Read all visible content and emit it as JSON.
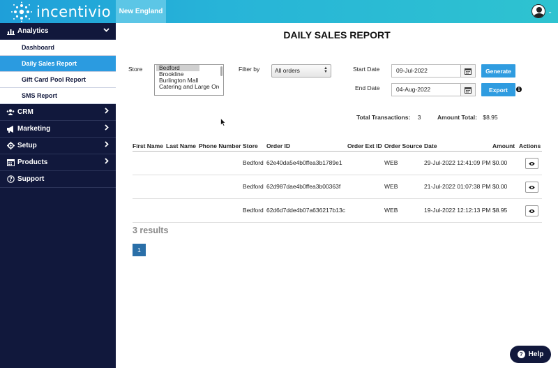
{
  "header": {
    "logo_text": "incentivio",
    "region": "New England"
  },
  "sidebar": {
    "analytics": {
      "label": "Analytics",
      "icon": "bar-chart-icon"
    },
    "sub_items": [
      {
        "label": "Dashboard",
        "active": false
      },
      {
        "label": "Daily Sales Report",
        "active": true
      },
      {
        "label": "Gift Card Pool Report",
        "active": false
      },
      {
        "label": "SMS Report",
        "active": false
      }
    ],
    "items": [
      {
        "label": "CRM",
        "icon": "users-icon"
      },
      {
        "label": "Marketing",
        "icon": "megaphone-icon"
      },
      {
        "label": "Setup",
        "icon": "gear-icon"
      },
      {
        "label": "Products",
        "icon": "products-icon"
      },
      {
        "label": "Support",
        "icon": "question-icon"
      }
    ]
  },
  "page": {
    "title": "DAILY SALES REPORT"
  },
  "filters": {
    "store_label": "Store",
    "stores": [
      "Bedford",
      "Brookline",
      "Burlington Mall",
      "Catering and Large Orde"
    ],
    "filter_label": "Filter by",
    "filter_value": "All orders",
    "start_label": "Start Date",
    "start_value": "09-Jul-2022",
    "end_label": "End Date",
    "end_value": "04-Aug-2022",
    "generate_label": "Generate",
    "export_label": "Export"
  },
  "summary": {
    "transactions_label": "Total Transactions:",
    "transactions_value": "3",
    "amount_label": "Amount Total:",
    "amount_value": "$8.95"
  },
  "table": {
    "headers": {
      "first_name": "First Name",
      "last_name": "Last Name",
      "phone": "Phone Number",
      "store": "Store",
      "order_id": "Order ID",
      "order_ext_id": "Order Ext ID",
      "order_source": "Order Source",
      "date": "Date",
      "amount": "Amount",
      "actions": "Actions"
    },
    "rows": [
      {
        "store": "Bedford",
        "order_id": "62e40da5e4b0ffea3b1789e1",
        "source": "WEB",
        "date": "29-Jul-2022 12:41:09 PM",
        "amount": "$0.00"
      },
      {
        "store": "Bedford",
        "order_id": "62d987dae4b0ffea3b00363f",
        "source": "WEB",
        "date": "21-Jul-2022 01:07:38 PM",
        "amount": "$0.00"
      },
      {
        "store": "Bedford",
        "order_id": "62d6d7dde4b07a636217b13c",
        "source": "WEB",
        "date": "19-Jul-2022 12:12:13 PM",
        "amount": "$8.95"
      }
    ]
  },
  "results": {
    "text": "3 results",
    "page": "1"
  },
  "help": {
    "label": "Help"
  }
}
